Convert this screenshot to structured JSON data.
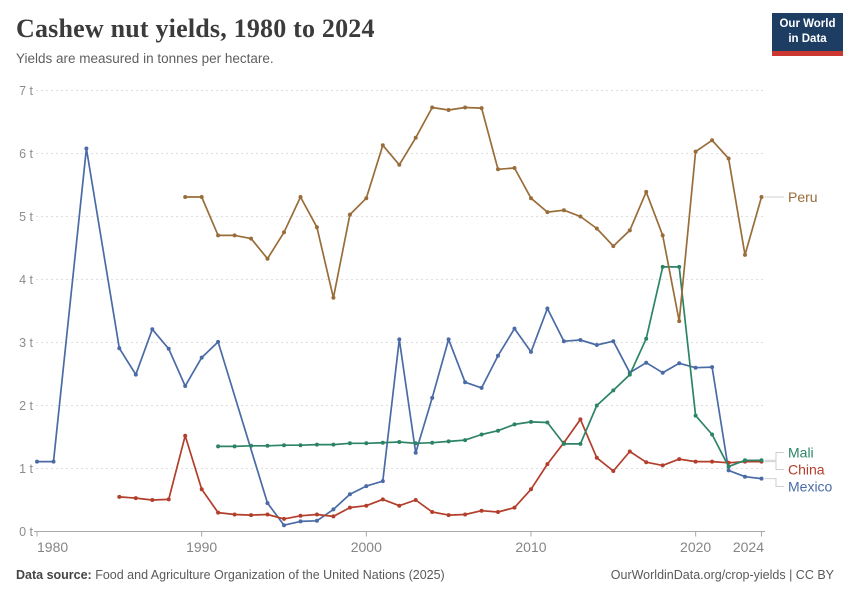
{
  "header": {
    "title": "Cashew nut yields, 1980 to 2024",
    "subtitle": "Yields are measured in tonnes per hectare."
  },
  "logo": {
    "line1": "Our World",
    "line2": "in Data",
    "bg_color": "#1d3d63",
    "bar_color": "#cd3731"
  },
  "footer": {
    "source_label": "Data source:",
    "source_text": " Food and Agriculture Organization of the United Nations (2025)",
    "attribution": "OurWorldinData.org/crop-yields | CC BY"
  },
  "chart_data": {
    "type": "line",
    "title": "Cashew nut yields, 1980 to 2024",
    "unit": "tonnes per hectare",
    "xlabel": "",
    "ylabel": "",
    "xlim": [
      1980,
      2024
    ],
    "ylim": [
      0,
      7
    ],
    "grid": "horizontal-dashed",
    "legend_position": "right-edge-labels",
    "y_ticks": [
      {
        "v": 0,
        "label": "0 t"
      },
      {
        "v": 1,
        "label": "1 t"
      },
      {
        "v": 2,
        "label": "2 t"
      },
      {
        "v": 3,
        "label": "3 t"
      },
      {
        "v": 4,
        "label": "4 t"
      },
      {
        "v": 5,
        "label": "5 t"
      },
      {
        "v": 6,
        "label": "6 t"
      },
      {
        "v": 7,
        "label": "7 t"
      }
    ],
    "x_ticks": [
      {
        "v": 1980,
        "label": "1980"
      },
      {
        "v": 1990,
        "label": "1990"
      },
      {
        "v": 2000,
        "label": "2000"
      },
      {
        "v": 2010,
        "label": "2010"
      },
      {
        "v": 2020,
        "label": "2020"
      },
      {
        "v": 2024,
        "label": "2024"
      }
    ],
    "series": [
      {
        "name": "Peru",
        "color": "#996d39",
        "points": [
          [
            1989,
            5.31
          ],
          [
            1990,
            5.31
          ],
          [
            1991,
            4.7
          ],
          [
            1992,
            4.7
          ],
          [
            1993,
            4.65
          ],
          [
            1994,
            4.33
          ],
          [
            1995,
            4.75
          ],
          [
            1996,
            5.31
          ],
          [
            1997,
            4.83
          ],
          [
            1998,
            3.71
          ],
          [
            1999,
            5.03
          ],
          [
            2000,
            5.29
          ],
          [
            2001,
            6.13
          ],
          [
            2002,
            5.82
          ],
          [
            2003,
            6.25
          ],
          [
            2004,
            6.73
          ],
          [
            2005,
            6.69
          ],
          [
            2006,
            6.73
          ],
          [
            2007,
            6.72
          ],
          [
            2008,
            5.75
          ],
          [
            2009,
            5.77
          ],
          [
            2010,
            5.29
          ],
          [
            2011,
            5.07
          ],
          [
            2012,
            5.1
          ],
          [
            2013,
            5.0
          ],
          [
            2014,
            4.81
          ],
          [
            2015,
            4.53
          ],
          [
            2016,
            4.78
          ],
          [
            2017,
            5.39
          ],
          [
            2018,
            4.7
          ],
          [
            2019,
            3.34
          ],
          [
            2020,
            6.03
          ],
          [
            2021,
            6.21
          ],
          [
            2022,
            5.92
          ],
          [
            2023,
            4.39
          ],
          [
            2024,
            5.31
          ]
        ]
      },
      {
        "name": "Mali",
        "color": "#2c8465",
        "points": [
          [
            1991,
            1.35
          ],
          [
            1992,
            1.35
          ],
          [
            1993,
            1.36
          ],
          [
            1994,
            1.36
          ],
          [
            1995,
            1.37
          ],
          [
            1996,
            1.37
          ],
          [
            1997,
            1.38
          ],
          [
            1998,
            1.38
          ],
          [
            1999,
            1.4
          ],
          [
            2000,
            1.4
          ],
          [
            2001,
            1.41
          ],
          [
            2002,
            1.42
          ],
          [
            2003,
            1.4
          ],
          [
            2004,
            1.41
          ],
          [
            2005,
            1.43
          ],
          [
            2006,
            1.45
          ],
          [
            2007,
            1.54
          ],
          [
            2008,
            1.6
          ],
          [
            2009,
            1.7
          ],
          [
            2010,
            1.74
          ],
          [
            2011,
            1.73
          ],
          [
            2012,
            1.39
          ],
          [
            2013,
            1.39
          ],
          [
            2014,
            2.0
          ],
          [
            2015,
            2.24
          ],
          [
            2016,
            2.49
          ],
          [
            2017,
            3.06
          ],
          [
            2018,
            4.2
          ],
          [
            2019,
            4.2
          ],
          [
            2020,
            1.84
          ],
          [
            2021,
            1.54
          ],
          [
            2022,
            1.03
          ],
          [
            2023,
            1.13
          ],
          [
            2024,
            1.13
          ]
        ]
      },
      {
        "name": "China",
        "color": "#b23e2b",
        "points": [
          [
            1985,
            0.55
          ],
          [
            1986,
            0.53
          ],
          [
            1987,
            0.5
          ],
          [
            1988,
            0.51
          ],
          [
            1989,
            1.52
          ],
          [
            1990,
            0.67
          ],
          [
            1991,
            0.3
          ],
          [
            1992,
            0.27
          ],
          [
            1993,
            0.26
          ],
          [
            1994,
            0.27
          ],
          [
            1995,
            0.2
          ],
          [
            1996,
            0.25
          ],
          [
            1997,
            0.27
          ],
          [
            1998,
            0.24
          ],
          [
            1999,
            0.38
          ],
          [
            2000,
            0.41
          ],
          [
            2001,
            0.51
          ],
          [
            2002,
            0.41
          ],
          [
            2003,
            0.5
          ],
          [
            2004,
            0.31
          ],
          [
            2005,
            0.26
          ],
          [
            2006,
            0.27
          ],
          [
            2007,
            0.33
          ],
          [
            2008,
            0.31
          ],
          [
            2009,
            0.38
          ],
          [
            2010,
            0.67
          ],
          [
            2011,
            1.07
          ],
          [
            2012,
            1.41
          ],
          [
            2013,
            1.78
          ],
          [
            2014,
            1.17
          ],
          [
            2015,
            0.96
          ],
          [
            2016,
            1.27
          ],
          [
            2017,
            1.1
          ],
          [
            2018,
            1.05
          ],
          [
            2019,
            1.15
          ],
          [
            2020,
            1.11
          ],
          [
            2021,
            1.11
          ],
          [
            2022,
            1.09
          ],
          [
            2023,
            1.11
          ],
          [
            2024,
            1.11
          ]
        ]
      },
      {
        "name": "Mexico",
        "color": "#4a6ba5",
        "points": [
          [
            1980,
            1.11
          ],
          [
            1981,
            1.11
          ],
          [
            1983,
            6.08
          ],
          [
            1985,
            2.91
          ],
          [
            1986,
            2.49
          ],
          [
            1987,
            3.21
          ],
          [
            1988,
            2.9
          ],
          [
            1989,
            2.31
          ],
          [
            1990,
            2.76
          ],
          [
            1991,
            3.01
          ],
          [
            1994,
            0.45
          ],
          [
            1995,
            0.1
          ],
          [
            1996,
            0.16
          ],
          [
            1997,
            0.17
          ],
          [
            1998,
            0.35
          ],
          [
            1999,
            0.59
          ],
          [
            2000,
            0.72
          ],
          [
            2001,
            0.8
          ],
          [
            2002,
            3.05
          ],
          [
            2003,
            1.25
          ],
          [
            2004,
            2.12
          ],
          [
            2005,
            3.05
          ],
          [
            2006,
            2.37
          ],
          [
            2007,
            2.28
          ],
          [
            2008,
            2.79
          ],
          [
            2009,
            3.22
          ],
          [
            2010,
            2.85
          ],
          [
            2011,
            3.54
          ],
          [
            2012,
            3.02
          ],
          [
            2013,
            3.04
          ],
          [
            2014,
            2.96
          ],
          [
            2015,
            3.02
          ],
          [
            2016,
            2.52
          ],
          [
            2017,
            2.68
          ],
          [
            2018,
            2.52
          ],
          [
            2019,
            2.67
          ],
          [
            2020,
            2.6
          ],
          [
            2021,
            2.61
          ],
          [
            2022,
            0.97
          ],
          [
            2023,
            0.87
          ],
          [
            2024,
            0.84
          ]
        ]
      }
    ]
  }
}
